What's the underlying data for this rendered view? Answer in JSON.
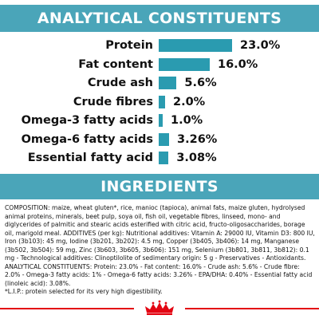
{
  "analytical": {
    "title": "ANALYTICAL CONSTITUENTS",
    "items": [
      {
        "label": "Protein",
        "value": "23.0%",
        "pct": 23.0
      },
      {
        "label": "Fat content",
        "value": "16.0%",
        "pct": 16.0
      },
      {
        "label": "Crude ash",
        "value": "5.6%",
        "pct": 5.6
      },
      {
        "label": "Crude fibres",
        "value": "2.0%",
        "pct": 2.0
      },
      {
        "label": "Omega-3 fatty acids",
        "value": "1.0%",
        "pct": 1.0
      },
      {
        "label": "Omega-6 fatty acids",
        "value": "3.26%",
        "pct": 3.26
      },
      {
        "label": "Essential fatty acid",
        "value": "3.08%",
        "pct": 3.08
      }
    ]
  },
  "ingredients": {
    "title": "INGREDIENTS",
    "composition": "COMPOSITION: maize, wheat gluten*, rice, manioc (tapioca), animal fats, maize gluten, hydrolysed animal proteins, minerals, beet pulp, soya oil, fish oil, vegetable fibres, linseed, mono- and diglycerides of palmitic and stearic acids esterified with citric acid, fructo-oligosaccharides, borage oil, marigold meal. ADDITIVES (per kg): Nutritional additives: Vitamin A: 29000 IU, Vitamin D3: 800 IU, Iron (3b103): 45 mg, Iodine (3b201, 3b202): 4.5 mg, Copper (3b405, 3b406): 14 mg, Manganese (3b502, 3b504): 59 mg, Zinc (3b603, 3b605, 3b606): 151 mg, Selenium (3b801, 3b811, 3b812): 0.1 mg - Technological additives: Clinoptilolite of sedimentary origin: 5 g - Preservatives - Antioxidants. ANALYTICAL CONSTITUENTS: Protein: 23.0% - Fat content: 16.0% - Crude ash: 5.6% - Crude fibre: 2.0% - Omega-3 fatty acids: 1% - Omega-6 fatty acids: 3.26% - EPA/DHA: 0.40% - Essential fatty acid (linoleic acid): 3.08%.",
    "footnote": "*L.I.P.: protein selected for its very high digestibility."
  },
  "colors": {
    "banner": "#4aa5b9",
    "bar": "#2a9bb0",
    "accent_line": "#e30613"
  },
  "logo": {
    "icon": "crown-logo-icon"
  }
}
